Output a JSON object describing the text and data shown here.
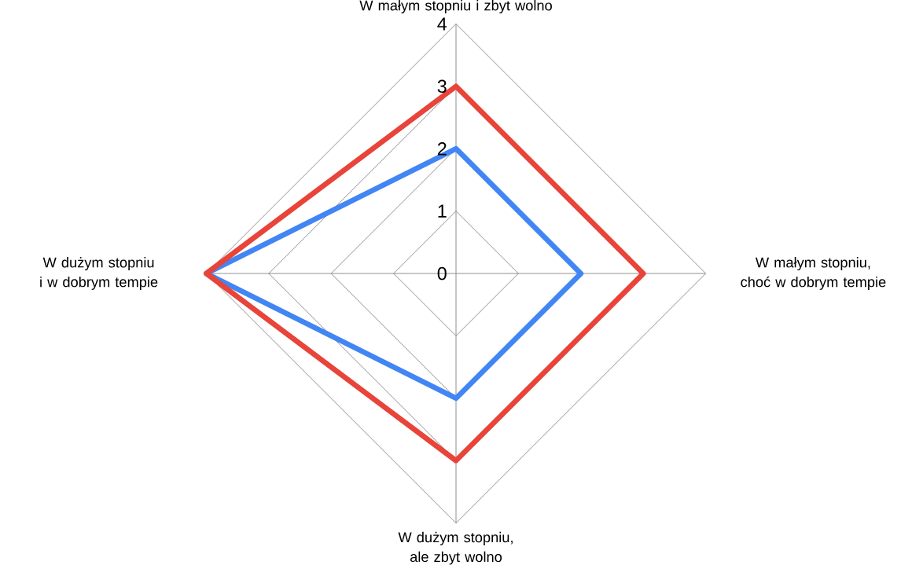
{
  "chart_data": {
    "type": "radar",
    "categories": [
      "W małym stopniu i zbyt wolno",
      "W małym stopniu, choć w dobrym tempie",
      "W dużym stopniu, ale zbyt wolno",
      "W dużym stopniu i w dobrym tempie"
    ],
    "series": [
      {
        "color": "#4285f4",
        "values": [
          2,
          2,
          2,
          4
        ]
      },
      {
        "color": "#e8443a",
        "values": [
          3,
          3,
          3,
          4
        ]
      }
    ],
    "ylim": [
      0,
      4
    ],
    "yticks": [
      0,
      1,
      2,
      3,
      4
    ],
    "grid": true
  }
}
